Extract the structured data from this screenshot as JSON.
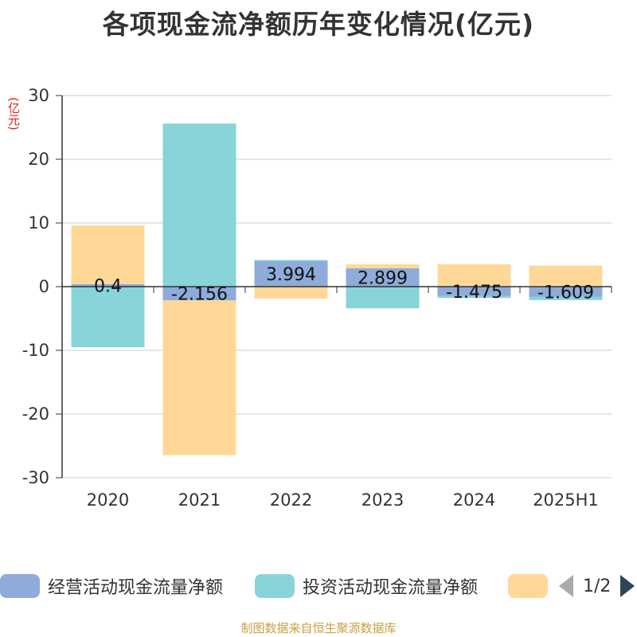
{
  "title": "各项现金流净额历年变化情况(亿元)",
  "unit_label": "(亿元)",
  "source": "制图数据来自恒生聚源数据库",
  "legend_pager": {
    "prev_icon": "triangle-left-icon",
    "page_text": "1/2",
    "next_icon": "triangle-right-icon"
  },
  "chart_data": {
    "type": "bar",
    "stacked": true,
    "title": "各项现金流净额历年变化情况(亿元)",
    "ylabel": "(亿元)",
    "categories": [
      "2020",
      "2021",
      "2022",
      "2023",
      "2024",
      "2025H1"
    ],
    "ylim": [
      -30,
      30
    ],
    "yticks": [
      30,
      20,
      10,
      0,
      -10,
      -20,
      -30
    ],
    "grid": true,
    "legend_position": "bottom",
    "series": [
      {
        "name": "经营活动现金流量净额",
        "color": "#8eabda",
        "show_labels": true,
        "labels": [
          "0.4",
          "-2.156",
          "3.994",
          "2.899",
          "-1.475",
          "-1.609"
        ],
        "values": [
          0.4,
          -2.156,
          3.994,
          2.899,
          -1.475,
          -1.609
        ]
      },
      {
        "name": "投资活动现金流量净额",
        "color": "#88d4d8",
        "show_labels": false,
        "values": [
          -9.5,
          25.6,
          0.2,
          -3.4,
          -0.3,
          -0.5
        ]
      },
      {
        "name": "",
        "color": "#ffd898",
        "show_labels": false,
        "values": [
          9.2,
          -24.3,
          -1.9,
          0.6,
          3.5,
          3.3
        ]
      }
    ]
  }
}
